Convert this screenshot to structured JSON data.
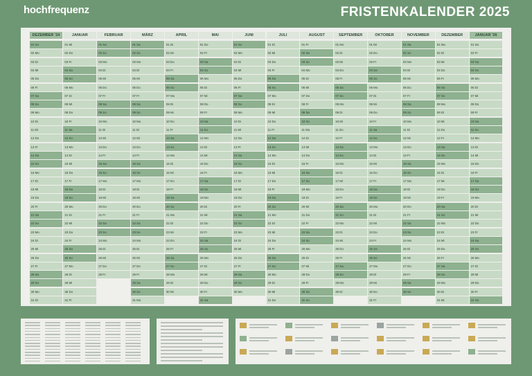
{
  "calendar": {
    "brand": "hochfrequenz",
    "title": "FRISTENKALENDER 2025",
    "months": [
      {
        "name": "DEZEMBER '24",
        "days": [
          "01 So",
          "02 Mo",
          "03 Di",
          "04 Mi",
          "05 Do",
          "06 Fr",
          "07 Sa",
          "08 So",
          "09 Mo",
          "10 Di",
          "11 Mi",
          "12 Do",
          "13 Fr",
          "14 Sa",
          "15 So",
          "16 Mo",
          "17 Di",
          "18 Mi",
          "19 Do",
          "20 Fr",
          "21 Sa",
          "22 So",
          "23 Mo",
          "24 Di",
          "25 Mi",
          "26 Do",
          "27 Fr",
          "28 Sa",
          "29 So",
          "30 Mo",
          "31 Di"
        ]
      },
      {
        "name": "JANUAR",
        "days": [
          "01 Mi",
          "02 Do",
          "03 Fr",
          "04 Sa",
          "05 So",
          "06 Mo",
          "07 Di",
          "08 Mi",
          "09 Do",
          "10 Fr",
          "11 Sa",
          "12 So",
          "13 Mo",
          "14 Di",
          "15 Mi",
          "16 Do",
          "17 Fr",
          "18 Sa",
          "19 So",
          "20 Mo",
          "21 Di",
          "22 Mi",
          "23 Do",
          "24 Fr",
          "25 Sa",
          "26 So",
          "27 Mo",
          "28 Di",
          "29 Mi",
          "30 Do",
          "31 Fr"
        ]
      },
      {
        "name": "FEBRUAR",
        "days": [
          "01 Sa",
          "02 So",
          "03 Mo",
          "04 Di",
          "05 Mi",
          "06 Do",
          "07 Fr",
          "08 Sa",
          "09 So",
          "10 Mo",
          "11 Di",
          "12 Mi",
          "13 Do",
          "14 Fr",
          "15 Sa",
          "16 So",
          "17 Mo",
          "18 Di",
          "19 Mi",
          "20 Do",
          "21 Fr",
          "22 Sa",
          "23 So",
          "24 Mo",
          "25 Di",
          "26 Mi",
          "27 Do",
          "28 Fr"
        ]
      },
      {
        "name": "MÄRZ",
        "days": [
          "01 Sa",
          "02 So",
          "03 Mo",
          "04 Di",
          "05 Mi",
          "06 Do",
          "07 Fr",
          "08 Sa",
          "09 So",
          "10 Mo",
          "11 Di",
          "12 Mi",
          "13 Do",
          "14 Fr",
          "15 Sa",
          "16 So",
          "17 Mo",
          "18 Di",
          "19 Mi",
          "20 Do",
          "21 Fr",
          "22 Sa",
          "23 So",
          "24 Mo",
          "25 Di",
          "26 Mi",
          "27 Do",
          "28 Fr",
          "29 Sa",
          "30 So",
          "31 Mo"
        ]
      },
      {
        "name": "APRIL",
        "days": [
          "01 Di",
          "02 Mi",
          "03 Do",
          "04 Fr",
          "05 Sa",
          "06 So",
          "07 Mo",
          "08 Di",
          "09 Mi",
          "10 Do",
          "11 Fr",
          "12 Sa",
          "13 So",
          "14 Mo",
          "15 Di",
          "16 Mi",
          "17 Do",
          "18 Fr",
          "19 Sa",
          "20 So",
          "21 Mo",
          "22 Di",
          "23 Mi",
          "24 Do",
          "25 Fr",
          "26 Sa",
          "27 So",
          "28 Mo",
          "29 Di",
          "30 Mi"
        ]
      },
      {
        "name": "MAI",
        "days": [
          "01 Do",
          "02 Fr",
          "03 Sa",
          "04 So",
          "05 Mo",
          "06 Di",
          "07 Mi",
          "08 Do",
          "09 Fr",
          "10 Sa",
          "11 So",
          "12 Mo",
          "13 Di",
          "14 Mi",
          "15 Do",
          "16 Fr",
          "17 Sa",
          "18 So",
          "19 Mo",
          "20 Di",
          "21 Mi",
          "22 Do",
          "23 Fr",
          "24 Sa",
          "25 So",
          "26 Mo",
          "27 Di",
          "28 Mi",
          "29 Do",
          "30 Fr",
          "31 Sa"
        ]
      },
      {
        "name": "JUNI",
        "days": [
          "01 So",
          "02 Mo",
          "03 Di",
          "04 Mi",
          "05 Do",
          "06 Fr",
          "07 Sa",
          "08 So",
          "09 Mo",
          "10 Di",
          "11 Mi",
          "12 Do",
          "13 Fr",
          "14 Sa",
          "15 So",
          "16 Mo",
          "17 Di",
          "18 Mi",
          "19 Do",
          "20 Fr",
          "21 Sa",
          "22 So",
          "23 Mo",
          "24 Di",
          "25 Mi",
          "26 Do",
          "27 Fr",
          "28 Sa",
          "29 So",
          "30 Mo"
        ]
      },
      {
        "name": "JULI",
        "days": [
          "01 Di",
          "02 Mi",
          "03 Do",
          "04 Fr",
          "05 Sa",
          "06 So",
          "07 Mo",
          "08 Di",
          "09 Mi",
          "10 Do",
          "11 Fr",
          "12 Sa",
          "13 So",
          "14 Mo",
          "15 Di",
          "16 Mi",
          "17 Do",
          "18 Fr",
          "19 Sa",
          "20 So",
          "21 Mo",
          "22 Di",
          "23 Mi",
          "24 Do",
          "25 Fr",
          "26 Sa",
          "27 So",
          "28 Mo",
          "29 Di",
          "30 Mi",
          "31 Do"
        ]
      },
      {
        "name": "AUGUST",
        "days": [
          "01 Fr",
          "02 Sa",
          "03 So",
          "04 Mo",
          "05 Di",
          "06 Mi",
          "07 Do",
          "08 Fr",
          "09 Sa",
          "10 So",
          "11 Mo",
          "12 Di",
          "13 Mi",
          "14 Do",
          "15 Fr",
          "16 Sa",
          "17 So",
          "18 Mo",
          "19 Di",
          "20 Mi",
          "21 Do",
          "22 Fr",
          "23 Sa",
          "24 So",
          "25 Mo",
          "26 Di",
          "27 Mi",
          "28 Do",
          "29 Fr",
          "30 Sa",
          "31 So"
        ]
      },
      {
        "name": "SEPTEMBER",
        "days": [
          "01 Mo",
          "02 Di",
          "03 Mi",
          "04 Do",
          "05 Fr",
          "06 Sa",
          "07 So",
          "08 Mo",
          "09 Di",
          "10 Mi",
          "11 Do",
          "12 Fr",
          "13 Sa",
          "14 So",
          "15 Mo",
          "16 Di",
          "17 Mi",
          "18 Do",
          "19 Fr",
          "20 Sa",
          "21 So",
          "22 Mo",
          "23 Di",
          "24 Mi",
          "25 Do",
          "26 Fr",
          "27 Sa",
          "28 So",
          "29 Mo",
          "30 Di"
        ]
      },
      {
        "name": "OKTOBER",
        "days": [
          "01 Mi",
          "02 Do",
          "03 Fr",
          "04 Sa",
          "05 So",
          "06 Mo",
          "07 Di",
          "08 Mi",
          "09 Do",
          "10 Fr",
          "11 Sa",
          "12 So",
          "13 Mo",
          "14 Di",
          "15 Mi",
          "16 Do",
          "17 Fr",
          "18 Sa",
          "19 So",
          "20 Mo",
          "21 Di",
          "22 Mi",
          "23 Do",
          "24 Fr",
          "25 Sa",
          "26 So",
          "27 Mo",
          "28 Di",
          "29 Mi",
          "30 Do",
          "31 Fr"
        ]
      },
      {
        "name": "NOVEMBER",
        "days": [
          "01 Sa",
          "02 So",
          "03 Mo",
          "04 Di",
          "05 Mi",
          "06 Do",
          "07 Fr",
          "08 Sa",
          "09 So",
          "10 Mo",
          "11 Di",
          "12 Mi",
          "13 Do",
          "14 Fr",
          "15 Sa",
          "16 So",
          "17 Mo",
          "18 Di",
          "19 Mi",
          "20 Do",
          "21 Fr",
          "22 Sa",
          "23 So",
          "24 Mo",
          "25 Di",
          "26 Mi",
          "27 Do",
          "28 Fr",
          "29 Sa",
          "30 So"
        ]
      },
      {
        "name": "DEZEMBER",
        "days": [
          "01 Mo",
          "02 Di",
          "03 Mi",
          "04 Do",
          "05 Fr",
          "06 Sa",
          "07 So",
          "08 Mo",
          "09 Di",
          "10 Mi",
          "11 Do",
          "12 Fr",
          "13 Sa",
          "14 So",
          "15 Mo",
          "16 Di",
          "17 Mi",
          "18 Do",
          "19 Fr",
          "20 Sa",
          "21 So",
          "22 Mo",
          "23 Di",
          "24 Mi",
          "25 Do",
          "26 Fr",
          "27 Sa",
          "28 So",
          "29 Mo",
          "30 Di",
          "31 Mi"
        ]
      },
      {
        "name": "JANUAR '26",
        "days": [
          "01 Do",
          "02 Fr",
          "03 Sa",
          "04 So",
          "05 Mo",
          "06 Di",
          "07 Mi",
          "08 Do",
          "09 Fr",
          "10 Sa",
          "11 So",
          "12 Mo",
          "13 Di",
          "14 Mi",
          "15 Do",
          "16 Fr",
          "17 Sa",
          "18 So",
          "19 Mo",
          "20 Di",
          "21 Mi",
          "22 Do",
          "23 Fr",
          "24 Sa",
          "25 So",
          "26 Mo",
          "27 Di",
          "28 Mi",
          "29 Do",
          "30 Fr",
          "31 Sa"
        ]
      }
    ]
  }
}
